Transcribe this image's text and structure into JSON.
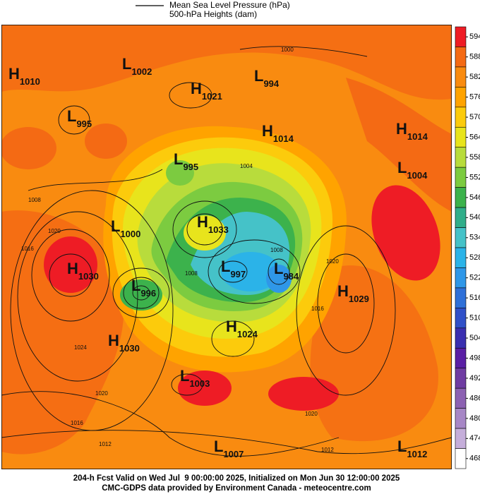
{
  "legend": {
    "line_label": "Mean Sea Level Pressure (hPa)",
    "fill_label": "500-hPa Heights (dam)"
  },
  "colorbar": {
    "ticks": [
      594,
      588,
      582,
      576,
      570,
      564,
      558,
      552,
      546,
      540,
      534,
      528,
      522,
      516,
      510,
      504,
      498,
      492,
      486,
      480,
      474,
      468
    ],
    "colors": [
      "#ee1c25",
      "#f46a14",
      "#f98b10",
      "#ffa300",
      "#fccb0c",
      "#e8e41c",
      "#b8dc3c",
      "#7ccb40",
      "#3cb24c",
      "#30ae8a",
      "#45c2c8",
      "#2bb3e8",
      "#2f97e8",
      "#2f70d8",
      "#3050c8",
      "#3a2fb0",
      "#5a1fa5",
      "#6f3ca2",
      "#8c61b2",
      "#a787c6",
      "#c5aeda",
      "#ffffff"
    ]
  },
  "centers": [
    {
      "type": "H",
      "value": "1010"
    },
    {
      "type": "L",
      "value": "1002"
    },
    {
      "type": "H",
      "value": "1021"
    },
    {
      "type": "L",
      "value": "994"
    },
    {
      "type": "L",
      "value": "995"
    },
    {
      "type": "H",
      "value": "1014"
    },
    {
      "type": "H",
      "value": "1014"
    },
    {
      "type": "L",
      "value": "995"
    },
    {
      "type": "L",
      "value": "1004"
    },
    {
      "type": "H",
      "value": "1033"
    },
    {
      "type": "L",
      "value": "1000"
    },
    {
      "type": "H",
      "value": "1030"
    },
    {
      "type": "L",
      "value": "997"
    },
    {
      "type": "L",
      "value": "984"
    },
    {
      "type": "L",
      "value": "996"
    },
    {
      "type": "H",
      "value": "1029"
    },
    {
      "type": "H",
      "value": "1024"
    },
    {
      "type": "H",
      "value": "1030"
    },
    {
      "type": "L",
      "value": "1003"
    },
    {
      "type": "L",
      "value": "1007"
    },
    {
      "type": "L",
      "value": "1012"
    }
  ],
  "contour_labels": [
    "1000",
    "1008",
    "1020",
    "1016",
    "1024",
    "1020",
    "1016",
    "1012",
    "1020",
    "1012",
    "1008",
    "1004",
    "1016",
    "1020",
    "1008"
  ],
  "footer": [
    "204-h Fcst Valid on Wed Jul  9 00:00:00 2025, Initialized on Mon Jun 30 12:00:00 2025",
    "CMC-GDPS data provided by Environment Canada - meteocentre.com"
  ]
}
